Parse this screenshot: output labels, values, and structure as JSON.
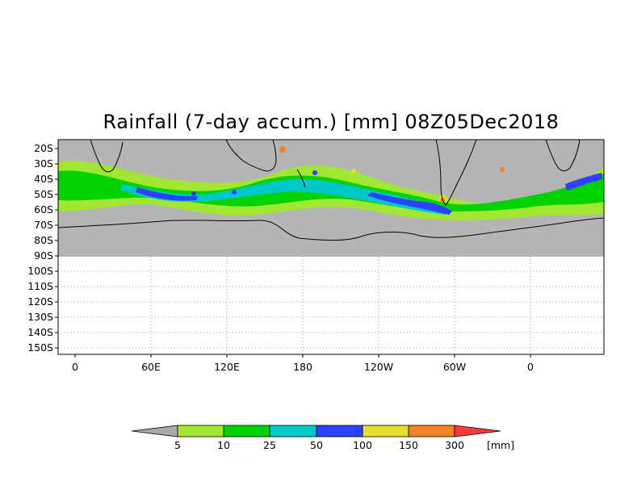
{
  "title": "Rainfall (7-day accum.) [mm] 08Z05Dec2018",
  "y_axis_labels": [
    "20S",
    "30S",
    "40S",
    "50S",
    "60S",
    "70S",
    "80S",
    "90S",
    "100S",
    "110S",
    "120S",
    "130S",
    "140S",
    "150S"
  ],
  "x_axis_labels": [
    "0",
    "60E",
    "120E",
    "180",
    "120W",
    "60W",
    "0"
  ],
  "colorbar": {
    "unit": "[mm]",
    "thresholds": [
      "5",
      "10",
      "25",
      "50",
      "100",
      "150",
      "300"
    ],
    "colors": [
      "#a9a9a9",
      "#a0e632",
      "#00d200",
      "#00c8c8",
      "#2d41ff",
      "#e6dc32",
      "#f08228",
      "#fa3c3c"
    ]
  },
  "palette": {
    "land_no_rain": "#b4b4b4",
    "coastline": "#000000",
    "grid": "#808080"
  }
}
